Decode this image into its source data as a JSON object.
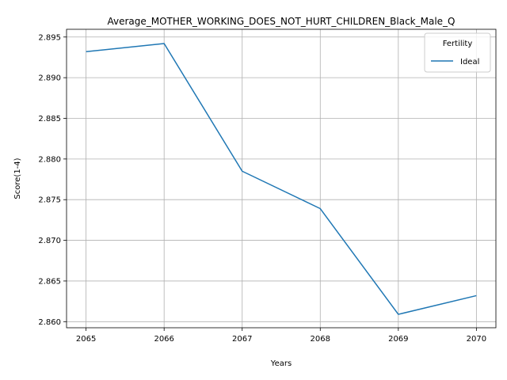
{
  "chart_data": {
    "type": "line",
    "title": "Average_MOTHER_WORKING_DOES_NOT_HURT_CHILDREN_Black_Male_Q",
    "xlabel": "Years",
    "ylabel": "Score(1-4)",
    "x": [
      2065,
      2066,
      2067,
      2068,
      2069,
      2070
    ],
    "series": [
      {
        "name": "Ideal",
        "values": [
          2.8932,
          2.8942,
          2.8785,
          2.8739,
          2.8609,
          2.8632
        ],
        "color": "#1f77b4"
      }
    ],
    "x_ticks": [
      "2065",
      "2066",
      "2067",
      "2068",
      "2069",
      "2070"
    ],
    "y_ticks": [
      "2.860",
      "2.865",
      "2.870",
      "2.875",
      "2.880",
      "2.885",
      "2.890",
      "2.895"
    ],
    "xlim": [
      2064.75,
      2070.25
    ],
    "ylim": [
      2.85925,
      2.89595
    ],
    "grid": true,
    "legend": {
      "title": "Fertility",
      "placement": "top-right"
    }
  }
}
